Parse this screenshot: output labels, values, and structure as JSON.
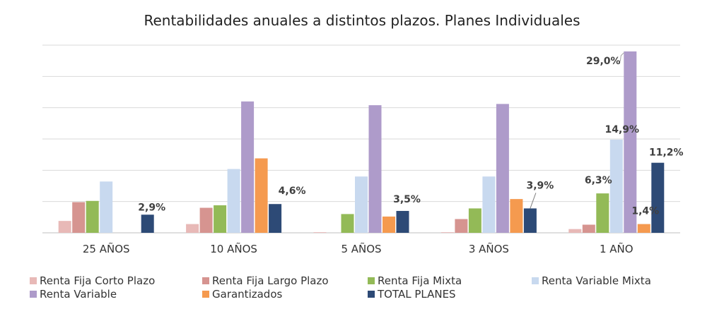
{
  "chart_data": {
    "type": "bar",
    "title": "Rentabilidades anuales a distintos plazos. Planes Individuales",
    "xlabel": "",
    "ylabel": "",
    "ylim": [
      0,
      30
    ],
    "grid": true,
    "legend_position": "bottom",
    "categories": [
      "25 AÑOS",
      "10 AÑOS",
      "5 AÑOS",
      "3 AÑOS",
      "1 AÑO"
    ],
    "series": [
      {
        "name": "Renta Fija Corto Plazo",
        "color": "#e8b9b7",
        "values": [
          1.9,
          1.4,
          0.1,
          0.1,
          0.6
        ]
      },
      {
        "name": "Renta Fija Largo Plazo",
        "color": "#d69490",
        "values": [
          4.9,
          4.0,
          null,
          2.2,
          1.3
        ]
      },
      {
        "name": "Renta Fija Mixta",
        "color": "#93ba57",
        "values": [
          5.1,
          4.4,
          3.0,
          3.9,
          6.3
        ]
      },
      {
        "name": "Renta Variable Mixta",
        "color": "#c8d9ef",
        "values": [
          8.2,
          10.2,
          9.0,
          9.0,
          14.9
        ]
      },
      {
        "name": "Renta Variable",
        "color": "#ae9bca",
        "values": [
          null,
          21.0,
          20.4,
          20.6,
          29.0
        ]
      },
      {
        "name": "Garantizados",
        "color": "#f59a4f",
        "values": [
          null,
          11.9,
          2.6,
          5.4,
          1.4
        ]
      },
      {
        "name": "TOTAL PLANES",
        "color": "#2d4a76",
        "values": [
          2.9,
          4.6,
          3.5,
          3.9,
          11.2
        ]
      }
    ],
    "data_labels": [
      {
        "series": 6,
        "category": 0,
        "text": "2,9%"
      },
      {
        "series": 6,
        "category": 1,
        "text": "4,6%"
      },
      {
        "series": 6,
        "category": 2,
        "text": "3,5%"
      },
      {
        "series": 6,
        "category": 3,
        "text": "3,9%"
      },
      {
        "series": 6,
        "category": 4,
        "text": "11,2%"
      },
      {
        "series": 2,
        "category": 4,
        "text": "6,3%"
      },
      {
        "series": 3,
        "category": 4,
        "text": "14,9%"
      },
      {
        "series": 4,
        "category": 4,
        "text": "29,0%"
      },
      {
        "series": 5,
        "category": 4,
        "text": "1,4%"
      }
    ]
  }
}
